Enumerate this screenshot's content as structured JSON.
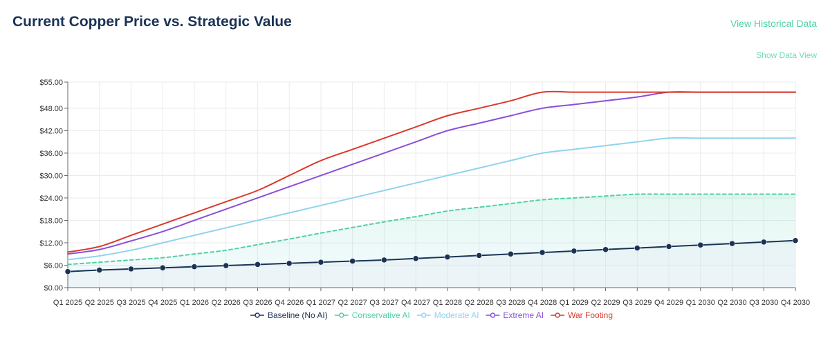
{
  "header": {
    "title": "Current Copper Price vs. Strategic Value",
    "view_historical_label": "View Historical Data",
    "show_data_view_label": "Show Data View"
  },
  "chart_data": {
    "type": "line",
    "title": "Current Copper Price vs. Strategic Value",
    "xlabel": "",
    "ylabel": "",
    "ylim": [
      0,
      55
    ],
    "y_ticks": [
      "$0.00",
      "$6.00",
      "$12.00",
      "$18.00",
      "$24.00",
      "$30.00",
      "$36.00",
      "$42.00",
      "$48.00",
      "$55.00"
    ],
    "y_tick_values": [
      0,
      6,
      12,
      18,
      24,
      30,
      36,
      42,
      48,
      55
    ],
    "categories": [
      "Q1 2025",
      "Q2 2025",
      "Q3 2025",
      "Q4 2025",
      "Q1 2026",
      "Q2 2026",
      "Q3 2026",
      "Q4 2026",
      "Q1 2027",
      "Q2 2027",
      "Q3 2027",
      "Q4 2027",
      "Q1 2028",
      "Q2 2028",
      "Q3 2028",
      "Q4 2028",
      "Q1 2029",
      "Q2 2029",
      "Q3 2029",
      "Q4 2029",
      "Q1 2030",
      "Q2 2030",
      "Q3 2030",
      "Q4 2030"
    ],
    "x_tick_labels": [
      "Q1 2025",
      "Q2 2025",
      "Q3 2025",
      "Q4 2025",
      "Q1 2026",
      "Q2 2026",
      "Q3 2026",
      "Q4 2026",
      "Q1 2027",
      "Q2 2027",
      "Q3 2027",
      "Q4 2027",
      "Q1 2028",
      "Q2 2028",
      "Q3 2028",
      "Q4 2028",
      "Q1 2029",
      "Q2 2029",
      "Q3 2029",
      "Q4 2029",
      "Q1 2030",
      "Q2 2030",
      "Q3 2030",
      "Q4 2030"
    ],
    "grid": true,
    "legend_position": "bottom",
    "series": [
      {
        "name": "Baseline (No AI)",
        "color": "#1a3355",
        "style": "solid",
        "markers": true,
        "fill": true,
        "values": [
          4.3,
          4.7,
          5.0,
          5.3,
          5.6,
          5.9,
          6.2,
          6.5,
          6.8,
          7.1,
          7.4,
          7.8,
          8.2,
          8.6,
          9.0,
          9.4,
          9.8,
          10.2,
          10.6,
          11.0,
          11.4,
          11.8,
          12.2,
          12.6
        ]
      },
      {
        "name": "Conservative AI",
        "color": "#4fd1a5",
        "style": "dashed",
        "markers": false,
        "fill": true,
        "values": [
          6.2,
          6.8,
          7.4,
          8.0,
          9.0,
          10.0,
          11.5,
          13.0,
          14.6,
          16.1,
          17.6,
          19.0,
          20.5,
          21.5,
          22.5,
          23.5,
          24.0,
          24.5,
          25.0,
          25.0,
          25.0,
          25.0,
          25.0,
          25.0
        ]
      },
      {
        "name": "Moderate AI",
        "color": "#8fd3ee",
        "style": "solid",
        "markers": false,
        "fill": false,
        "values": [
          7.5,
          8.5,
          10.0,
          12.0,
          14.0,
          16.0,
          18.0,
          20.0,
          22.0,
          24.0,
          26.0,
          28.0,
          30.0,
          32.0,
          34.0,
          36.0,
          37.0,
          38.0,
          39.0,
          40.0,
          40.0,
          40.0,
          40.0,
          40.0
        ]
      },
      {
        "name": "Extreme AI",
        "color": "#8a4fd8",
        "style": "solid",
        "markers": false,
        "fill": false,
        "values": [
          9.0,
          10.2,
          12.5,
          15.0,
          18.0,
          21.0,
          24.0,
          27.0,
          30.0,
          33.0,
          36.0,
          39.0,
          42.0,
          44.0,
          46.0,
          48.0,
          49.0,
          50.0,
          51.0,
          52.3,
          52.3,
          52.3,
          52.3,
          52.3
        ]
      },
      {
        "name": "War Footing",
        "color": "#d93a2b",
        "style": "solid",
        "markers": false,
        "fill": false,
        "values": [
          9.5,
          11.0,
          14.0,
          17.0,
          20.0,
          23.0,
          26.0,
          30.0,
          34.0,
          37.0,
          40.0,
          43.0,
          46.0,
          48.0,
          50.0,
          52.3,
          52.3,
          52.3,
          52.3,
          52.3,
          52.3,
          52.3,
          52.3,
          52.3
        ]
      }
    ]
  }
}
